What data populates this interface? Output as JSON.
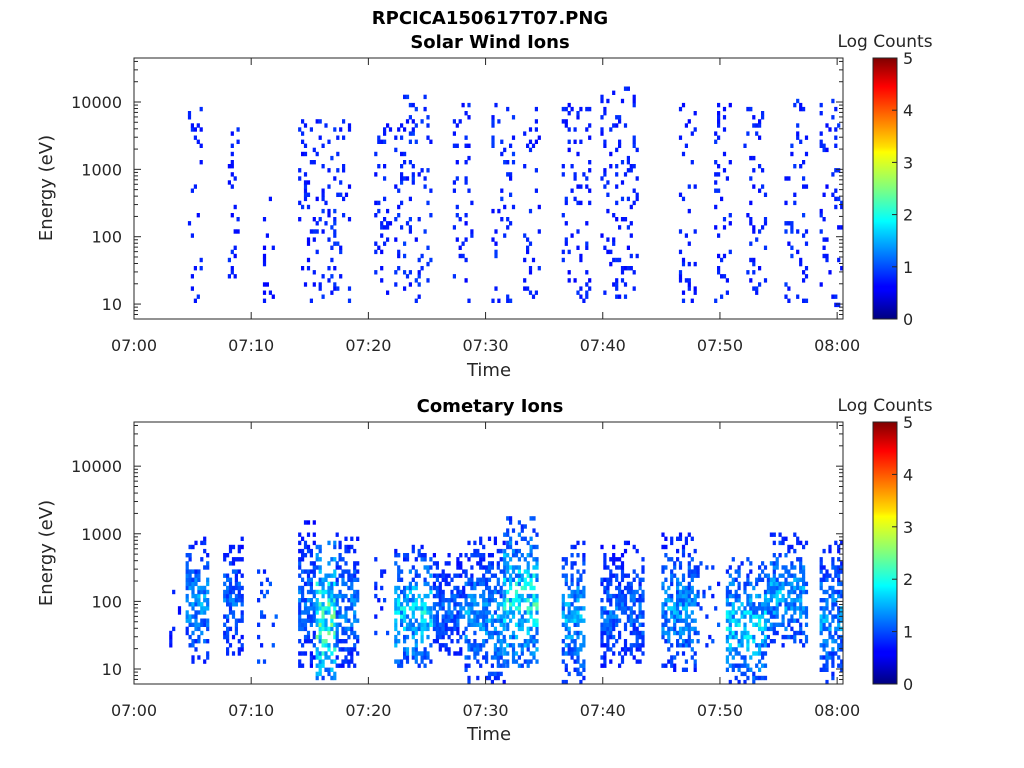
{
  "figure": {
    "title": "RPCICA150617T07.PNG"
  },
  "chart_data": [
    {
      "type": "heatmap",
      "title": "Solar Wind Ions",
      "xlabel": "Time",
      "ylabel": "Energy (eV)",
      "x_ticks": [
        "07:00",
        "07:10",
        "07:20",
        "07:30",
        "07:40",
        "07:50",
        "08:00"
      ],
      "x_tick_minutes": [
        0,
        10,
        20,
        30,
        40,
        50,
        60
      ],
      "xlim_minutes": [
        0,
        60.5
      ],
      "y_scale": "log",
      "y_ticks": [
        "10",
        "100",
        "1000",
        "10000"
      ],
      "y_tick_values": [
        10,
        100,
        1000,
        10000
      ],
      "ylim": [
        6,
        45000
      ],
      "colorbar": {
        "label": "Log Counts",
        "range": [
          0,
          5
        ],
        "ticks": [
          "0",
          "1",
          "2",
          "3",
          "4",
          "5"
        ],
        "colormap": "jet"
      },
      "bursts": [
        {
          "start": 4.6,
          "end": 5.8,
          "emin": 8,
          "emax": 12000,
          "level": 0.3
        },
        {
          "start": 8.0,
          "end": 9.0,
          "emin": 20,
          "emax": 9000,
          "level": 0.3
        },
        {
          "start": 11.0,
          "end": 12.0,
          "emin": 10,
          "emax": 500,
          "level": 0.2
        },
        {
          "start": 14.0,
          "end": 16.0,
          "emin": 10,
          "emax": 5000,
          "level": 0.3
        },
        {
          "start": 16.0,
          "end": 18.5,
          "emin": 10,
          "emax": 6000,
          "level": 0.35
        },
        {
          "start": 20.5,
          "end": 22.0,
          "emin": 10,
          "emax": 6000,
          "level": 0.3
        },
        {
          "start": 22.2,
          "end": 25.3,
          "emin": 10,
          "emax": 12000,
          "level": 0.35
        },
        {
          "start": 27.2,
          "end": 28.8,
          "emin": 10,
          "emax": 9000,
          "level": 0.3
        },
        {
          "start": 30.5,
          "end": 32.5,
          "emin": 10,
          "emax": 9000,
          "level": 0.35
        },
        {
          "start": 33.2,
          "end": 34.5,
          "emin": 10,
          "emax": 9000,
          "level": 0.3
        },
        {
          "start": 36.5,
          "end": 38.8,
          "emin": 10,
          "emax": 10000,
          "level": 0.3
        },
        {
          "start": 39.8,
          "end": 43.0,
          "emin": 10,
          "emax": 16000,
          "level": 0.3
        },
        {
          "start": 46.5,
          "end": 48.0,
          "emin": 10,
          "emax": 9000,
          "level": 0.3
        },
        {
          "start": 49.5,
          "end": 51.0,
          "emin": 10,
          "emax": 10000,
          "level": 0.3
        },
        {
          "start": 52.0,
          "end": 53.8,
          "emin": 10,
          "emax": 8000,
          "level": 0.3
        },
        {
          "start": 55.5,
          "end": 57.5,
          "emin": 10,
          "emax": 11000,
          "level": 0.35
        },
        {
          "start": 58.5,
          "end": 60.5,
          "emin": 8,
          "emax": 12000,
          "level": 0.3
        }
      ]
    },
    {
      "type": "heatmap",
      "title": "Cometary Ions",
      "xlabel": "Time",
      "ylabel": "Energy (eV)",
      "x_ticks": [
        "07:00",
        "07:10",
        "07:20",
        "07:30",
        "07:40",
        "07:50",
        "08:00"
      ],
      "x_tick_minutes": [
        0,
        10,
        20,
        30,
        40,
        50,
        60
      ],
      "xlim_minutes": [
        0,
        60.5
      ],
      "y_scale": "log",
      "y_ticks": [
        "10",
        "100",
        "1000",
        "10000"
      ],
      "y_tick_values": [
        10,
        100,
        1000,
        10000
      ],
      "ylim": [
        6,
        45000
      ],
      "colorbar": {
        "label": "Log Counts",
        "range": [
          0,
          5
        ],
        "ticks": [
          "0",
          "1",
          "2",
          "3",
          "4",
          "5"
        ],
        "colormap": "jet"
      },
      "bursts": [
        {
          "start": 3.0,
          "end": 4.0,
          "emin": 20,
          "emax": 150,
          "level": 0.3
        },
        {
          "start": 4.4,
          "end": 6.2,
          "emin": 12,
          "emax": 900,
          "level": 0.8
        },
        {
          "start": 7.6,
          "end": 9.2,
          "emin": 15,
          "emax": 900,
          "level": 0.6
        },
        {
          "start": 10.5,
          "end": 12.2,
          "emin": 10,
          "emax": 400,
          "level": 0.5
        },
        {
          "start": 14.0,
          "end": 15.5,
          "emin": 10,
          "emax": 1500,
          "level": 0.6
        },
        {
          "start": 15.5,
          "end": 17.2,
          "emin": 6,
          "emax": 700,
          "level": 1.6
        },
        {
          "start": 17.2,
          "end": 19.0,
          "emin": 10,
          "emax": 1000,
          "level": 0.7
        },
        {
          "start": 20.5,
          "end": 22.0,
          "emin": 30,
          "emax": 400,
          "level": 0.4
        },
        {
          "start": 22.2,
          "end": 25.3,
          "emin": 10,
          "emax": 600,
          "level": 1.1
        },
        {
          "start": 25.5,
          "end": 28.2,
          "emin": 15,
          "emax": 500,
          "level": 0.6
        },
        {
          "start": 28.2,
          "end": 31.5,
          "emin": 6,
          "emax": 800,
          "level": 0.8
        },
        {
          "start": 31.5,
          "end": 34.5,
          "emin": 10,
          "emax": 1600,
          "level": 1.3
        },
        {
          "start": 36.5,
          "end": 38.5,
          "emin": 6,
          "emax": 700,
          "level": 0.9
        },
        {
          "start": 39.8,
          "end": 43.5,
          "emin": 10,
          "emax": 700,
          "level": 0.6
        },
        {
          "start": 45.0,
          "end": 48.0,
          "emin": 8,
          "emax": 1000,
          "level": 0.8
        },
        {
          "start": 48.0,
          "end": 50.0,
          "emin": 20,
          "emax": 400,
          "level": 0.5
        },
        {
          "start": 50.5,
          "end": 53.8,
          "emin": 6,
          "emax": 400,
          "level": 1.1
        },
        {
          "start": 54.0,
          "end": 57.5,
          "emin": 20,
          "emax": 1000,
          "level": 0.9
        },
        {
          "start": 58.5,
          "end": 60.5,
          "emin": 6,
          "emax": 700,
          "level": 0.8
        }
      ]
    }
  ]
}
